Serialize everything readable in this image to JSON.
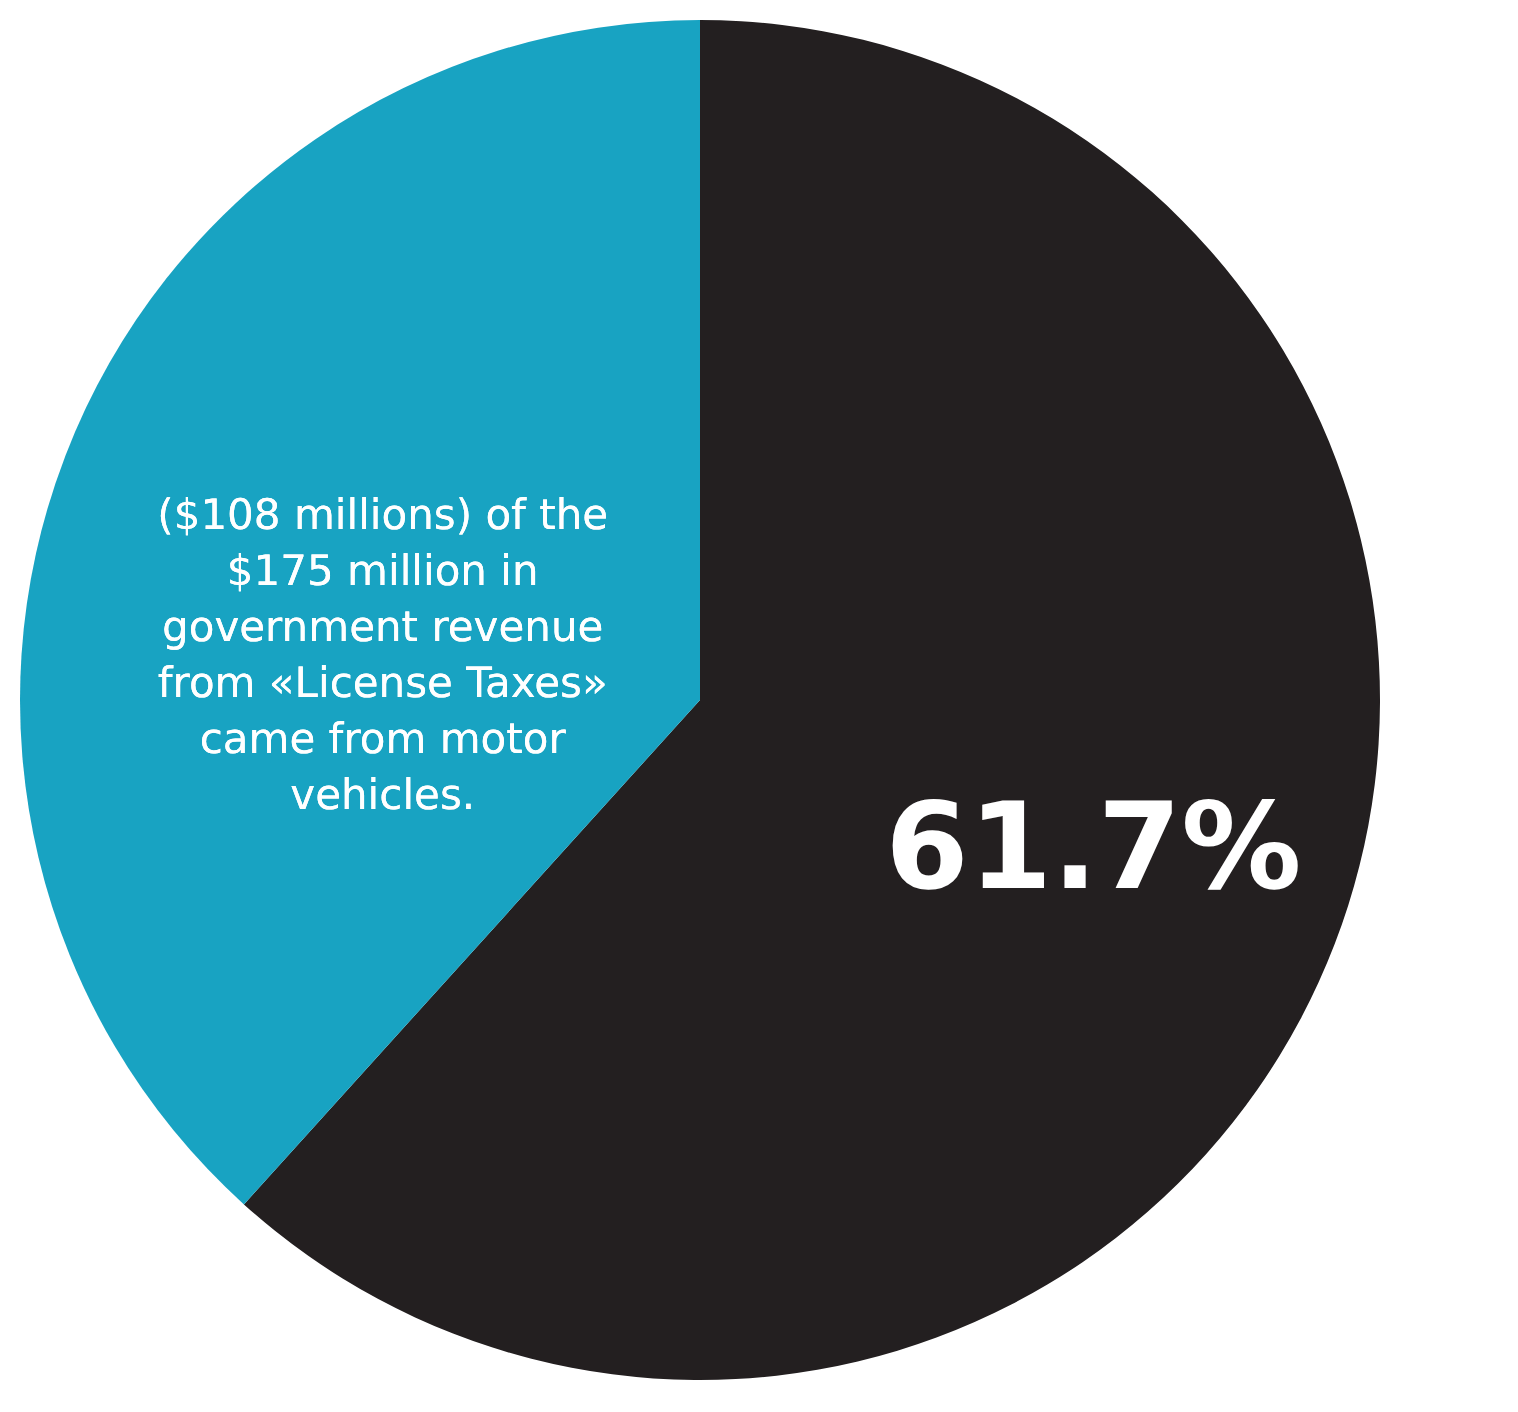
{
  "chart_data": {
    "type": "pie",
    "categories": [
      null,
      null
    ],
    "values": [
      61.7,
      38.3
    ],
    "colors": [
      "#231f20",
      "#18a3c2"
    ],
    "value_labels": [
      "61.7%",
      null
    ],
    "annotations": [
      "($108 millions) of the $175 million in government revenue from «License Taxes» came from motor vehicles."
    ]
  }
}
